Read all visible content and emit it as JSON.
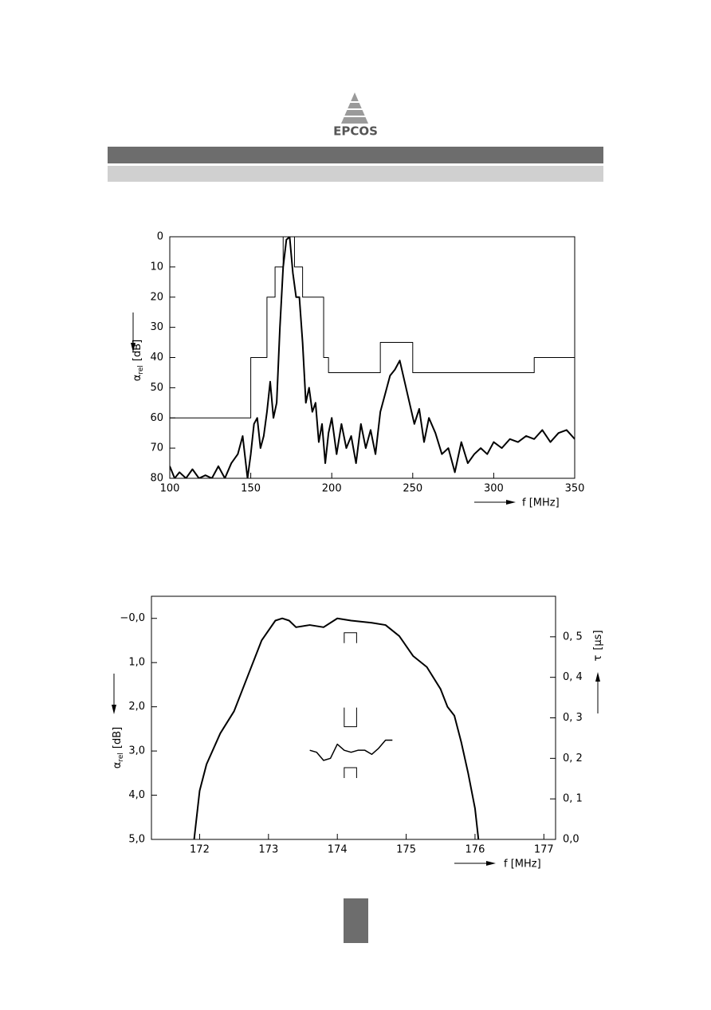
{
  "header": {
    "logo": "EPCOS"
  },
  "chart_data": [
    {
      "type": "line",
      "xlabel": "f [MHz]",
      "ylabel": {
        "symbol": "α",
        "subscript": "rel",
        "unit": "[dB]"
      },
      "xlim": [
        100,
        350
      ],
      "xticks": [
        100,
        150,
        200,
        250,
        300,
        350
      ],
      "ylim": [
        0,
        80
      ],
      "yticks": [
        0,
        10,
        20,
        30,
        40,
        50,
        60,
        70,
        80
      ],
      "y_inverted": true,
      "series": [
        {
          "color": "#000000",
          "line_width": 1,
          "x": [
            100,
            150,
            150,
            160,
            160,
            165,
            165,
            170,
            170,
            177,
            177,
            182,
            182,
            195,
            195,
            198,
            198,
            230,
            230,
            250,
            250,
            325,
            325,
            350
          ],
          "values": [
            60,
            60,
            40,
            40,
            20,
            20,
            10,
            10,
            0,
            0,
            10,
            10,
            20,
            20,
            40,
            40,
            45,
            45,
            35,
            35,
            45,
            45,
            40,
            40
          ]
        },
        {
          "color": "#000000",
          "line_width": 2,
          "x": [
            100,
            103,
            106,
            110,
            114,
            118,
            122,
            126,
            130,
            134,
            138,
            142,
            145,
            148,
            150,
            152,
            154,
            156,
            158,
            160,
            162,
            164,
            166,
            168,
            170,
            172,
            174,
            176,
            178,
            180,
            182,
            184,
            186,
            188,
            190,
            192,
            194,
            196,
            198,
            200,
            203,
            206,
            209,
            212,
            215,
            218,
            221,
            224,
            227,
            230,
            233,
            236,
            239,
            242,
            245,
            248,
            251,
            254,
            257,
            260,
            264,
            268,
            272,
            276,
            280,
            284,
            288,
            292,
            296,
            300,
            305,
            310,
            315,
            320,
            325,
            330,
            335,
            340,
            345,
            350
          ],
          "values": [
            76,
            80,
            78,
            80,
            77,
            80,
            79,
            80,
            76,
            80,
            75,
            72,
            66,
            80,
            72,
            62,
            60,
            70,
            66,
            58,
            48,
            60,
            55,
            30,
            10,
            1,
            0,
            12,
            20,
            20,
            35,
            55,
            50,
            58,
            55,
            68,
            62,
            75,
            65,
            60,
            72,
            62,
            70,
            66,
            75,
            62,
            70,
            64,
            72,
            58,
            52,
            46,
            44,
            41,
            48,
            55,
            62,
            57,
            68,
            60,
            65,
            72,
            70,
            78,
            68,
            75,
            72,
            70,
            72,
            68,
            70,
            67,
            68,
            66,
            67,
            64,
            68,
            65,
            64,
            67
          ]
        }
      ]
    },
    {
      "type": "line",
      "xlabel": "f [MHz]",
      "ylabel": {
        "symbol": "α",
        "subscript": "rel",
        "unit": "[dB]"
      },
      "y2label": {
        "symbol": "τ",
        "unit": "[μs]"
      },
      "xlim": [
        171.3,
        177.17
      ],
      "xticks": [
        172,
        173,
        174,
        175,
        176,
        177
      ],
      "ylim": [
        -0.5,
        5.0
      ],
      "y_inverted": true,
      "yticks": [
        {
          "value": 0,
          "label": "−0,0"
        },
        {
          "value": 1,
          "label": "1,0"
        },
        {
          "value": 2,
          "label": "2,0"
        },
        {
          "value": 3,
          "label": "3,0"
        },
        {
          "value": 4,
          "label": "4,0"
        },
        {
          "value": 5,
          "label": "5,0"
        }
      ],
      "y2lim": [
        0,
        0.6
      ],
      "y2ticks": [
        {
          "value": 0,
          "label": "0,0"
        },
        {
          "value": 0.1,
          "label": "0, 1"
        },
        {
          "value": 0.2,
          "label": "0, 2"
        },
        {
          "value": 0.3,
          "label": "0, 3"
        },
        {
          "value": 0.4,
          "label": "0, 4"
        },
        {
          "value": 0.5,
          "label": "0, 5"
        }
      ],
      "series": [
        {
          "color": "#000000",
          "line_width": 2,
          "x": [
            171.92,
            172.0,
            172.1,
            172.3,
            172.5,
            172.7,
            172.9,
            173.1,
            173.2,
            173.3,
            173.4,
            173.6,
            173.8,
            174.0,
            174.2,
            174.5,
            174.7,
            174.9,
            175.1,
            175.3,
            175.5,
            175.6,
            175.7,
            175.8,
            175.9,
            176.0,
            176.05
          ],
          "values": [
            5.0,
            3.9,
            3.3,
            2.6,
            2.1,
            1.3,
            0.5,
            0.05,
            0.0,
            0.05,
            0.2,
            0.15,
            0.2,
            0.0,
            0.05,
            0.1,
            0.15,
            0.4,
            0.85,
            1.1,
            1.6,
            2.0,
            2.2,
            2.8,
            3.5,
            4.3,
            5.0
          ]
        },
        {
          "color": "#000000",
          "line_width": 1.5,
          "axis": "y2",
          "x": [
            173.6,
            173.7,
            173.8,
            173.9,
            174.0,
            174.1,
            174.2,
            174.3,
            174.4,
            174.5,
            174.6,
            174.7,
            174.8
          ],
          "values": [
            0.22,
            0.215,
            0.195,
            0.2,
            0.235,
            0.22,
            0.215,
            0.22,
            0.22,
            0.21,
            0.225,
            0.245,
            0.245
          ]
        }
      ],
      "markers": [
        {
          "x": [
            174.1,
            174.28
          ],
          "y": 0.51,
          "axis": "y2",
          "open": "down"
        },
        {
          "x": [
            174.1,
            174.28
          ],
          "y": 0.278,
          "axis": "y2",
          "open": "up"
        },
        {
          "x": [
            174.1,
            174.28
          ],
          "y": 0.177,
          "axis": "y2",
          "open": "down"
        }
      ]
    }
  ]
}
